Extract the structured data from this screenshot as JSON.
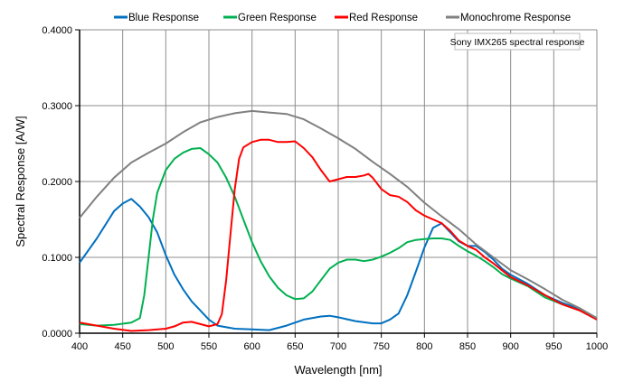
{
  "chart_data": {
    "type": "line",
    "title": "",
    "annotation": "Sony IMX265 spectral response",
    "xlabel": "Wavelength [nm]",
    "ylabel": "Spectral Response [A/W]",
    "xlim": [
      400,
      1000
    ],
    "ylim": [
      0,
      0.4
    ],
    "xticks": [
      400,
      450,
      500,
      550,
      600,
      650,
      700,
      750,
      800,
      850,
      900,
      950,
      1000
    ],
    "yticks": [
      "0.0000",
      "0.1000",
      "0.2000",
      "0.3000",
      "0.4000"
    ],
    "grid": true,
    "legend_position": "top",
    "series": [
      {
        "name": "Blue Response",
        "color": "#0070C0",
        "x": [
          400,
          420,
          440,
          450,
          460,
          470,
          480,
          490,
          500,
          510,
          520,
          530,
          540,
          550,
          560,
          580,
          600,
          620,
          640,
          660,
          680,
          690,
          700,
          720,
          740,
          750,
          760,
          770,
          780,
          790,
          800,
          810,
          820,
          830,
          840,
          850,
          860,
          870,
          880,
          890,
          900,
          920,
          940,
          960,
          980,
          1000
        ],
        "y": [
          0.093,
          0.125,
          0.161,
          0.171,
          0.177,
          0.167,
          0.153,
          0.133,
          0.103,
          0.077,
          0.058,
          0.042,
          0.03,
          0.018,
          0.01,
          0.006,
          0.005,
          0.004,
          0.01,
          0.018,
          0.022,
          0.023,
          0.021,
          0.016,
          0.013,
          0.013,
          0.018,
          0.026,
          0.05,
          0.081,
          0.113,
          0.139,
          0.145,
          0.133,
          0.121,
          0.115,
          0.115,
          0.107,
          0.097,
          0.085,
          0.077,
          0.065,
          0.05,
          0.04,
          0.032,
          0.02
        ]
      },
      {
        "name": "Green Response",
        "color": "#00B050",
        "x": [
          400,
          420,
          440,
          460,
          470,
          475,
          480,
          485,
          490,
          500,
          510,
          520,
          530,
          540,
          550,
          560,
          570,
          580,
          590,
          600,
          610,
          620,
          630,
          640,
          650,
          660,
          670,
          680,
          690,
          700,
          710,
          720,
          730,
          740,
          750,
          760,
          770,
          780,
          790,
          800,
          810,
          820,
          830,
          840,
          850,
          860,
          870,
          880,
          890,
          900,
          920,
          940,
          960,
          980,
          1000
        ],
        "y": [
          0.012,
          0.01,
          0.011,
          0.014,
          0.02,
          0.05,
          0.1,
          0.15,
          0.185,
          0.215,
          0.23,
          0.238,
          0.243,
          0.244,
          0.236,
          0.225,
          0.205,
          0.18,
          0.15,
          0.12,
          0.095,
          0.075,
          0.06,
          0.05,
          0.045,
          0.046,
          0.055,
          0.07,
          0.085,
          0.093,
          0.097,
          0.097,
          0.095,
          0.097,
          0.101,
          0.106,
          0.112,
          0.12,
          0.123,
          0.124,
          0.125,
          0.125,
          0.123,
          0.115,
          0.108,
          0.102,
          0.095,
          0.087,
          0.078,
          0.072,
          0.062,
          0.047,
          0.038,
          0.03,
          0.018
        ]
      },
      {
        "name": "Red Response",
        "color": "#FF0000",
        "x": [
          400,
          420,
          440,
          460,
          480,
          500,
          510,
          520,
          530,
          540,
          550,
          560,
          565,
          570,
          575,
          580,
          585,
          590,
          600,
          610,
          620,
          630,
          640,
          650,
          660,
          670,
          680,
          690,
          700,
          710,
          720,
          730,
          735,
          740,
          750,
          760,
          770,
          780,
          790,
          800,
          810,
          820,
          830,
          840,
          850,
          860,
          870,
          880,
          890,
          900,
          920,
          940,
          960,
          980,
          1000
        ],
        "y": [
          0.014,
          0.01,
          0.006,
          0.003,
          0.004,
          0.006,
          0.009,
          0.014,
          0.015,
          0.012,
          0.009,
          0.012,
          0.025,
          0.07,
          0.13,
          0.19,
          0.23,
          0.245,
          0.252,
          0.255,
          0.255,
          0.252,
          0.252,
          0.253,
          0.244,
          0.232,
          0.215,
          0.2,
          0.203,
          0.206,
          0.206,
          0.208,
          0.21,
          0.205,
          0.19,
          0.182,
          0.18,
          0.173,
          0.162,
          0.155,
          0.15,
          0.145,
          0.135,
          0.122,
          0.115,
          0.11,
          0.1,
          0.092,
          0.083,
          0.074,
          0.063,
          0.05,
          0.038,
          0.03,
          0.018
        ]
      },
      {
        "name": "Monochrome Response",
        "color": "#808080",
        "x": [
          400,
          420,
          440,
          450,
          460,
          480,
          500,
          520,
          540,
          560,
          580,
          600,
          620,
          640,
          660,
          680,
          700,
          720,
          740,
          760,
          780,
          800,
          820,
          840,
          860,
          880,
          900,
          920,
          940,
          960,
          980,
          1000
        ],
        "y": [
          0.152,
          0.18,
          0.205,
          0.215,
          0.225,
          0.238,
          0.25,
          0.265,
          0.278,
          0.285,
          0.29,
          0.293,
          0.291,
          0.289,
          0.282,
          0.27,
          0.257,
          0.243,
          0.226,
          0.21,
          0.193,
          0.172,
          0.154,
          0.137,
          0.117,
          0.1,
          0.083,
          0.071,
          0.058,
          0.044,
          0.033,
          0.02
        ]
      }
    ]
  }
}
